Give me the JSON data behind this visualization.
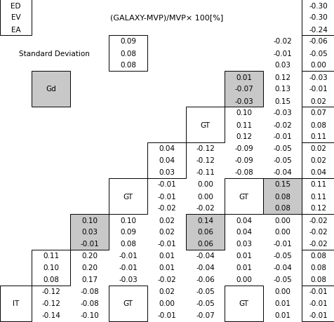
{
  "title": "(GALAXY-MVP)/MVP× 100[%]",
  "top_left_labels": [
    "ED",
    "EV",
    "EA"
  ],
  "top_right_values": [
    "-0.30",
    "-0.30",
    "-0.24"
  ],
  "std_dev_label": "Standard Deviation",
  "std_dev_values": [
    "0.09",
    "0.08",
    "0.08"
  ],
  "std_dev_right_col1": [
    "-0.02",
    "-0.01",
    "0.03"
  ],
  "std_dev_right_col2": [
    "-0.06",
    "-0.05",
    "0.00"
  ],
  "gd_label": "Gd",
  "gd_right_col1": [
    "0.01",
    "-0.07",
    "-0.03"
  ],
  "gd_right_col2": [
    "0.12",
    "0.13",
    "0.15"
  ],
  "gd_right_col3": [
    "-0.03",
    "-0.01",
    "0.02"
  ],
  "row_GT1_label": "GT",
  "row_GT1_col1": [
    "0.10",
    "0.11",
    "0.12"
  ],
  "row_GT1_col2": [
    "-0.03",
    "-0.02",
    "-0.01"
  ],
  "row_GT1_col3": [
    "0.07",
    "0.08",
    "0.11"
  ],
  "row4_col1": [
    "0.04",
    "0.04",
    "0.03"
  ],
  "row4_col2": [
    "-0.12",
    "-0.12",
    "-0.11"
  ],
  "row4_col3": [
    "-0.09",
    "-0.09",
    "-0.08"
  ],
  "row4_col4": [
    "-0.05",
    "-0.05",
    "-0.04"
  ],
  "row4_col5": [
    "0.02",
    "0.02",
    "0.04"
  ],
  "row_GT2_label": "GT",
  "row_GT2_col1": [
    "-0.01",
    "-0.01",
    "-0.02"
  ],
  "row_GT2_col2": [
    "0.00",
    "0.00",
    "-0.02"
  ],
  "row_GT2_GT_label": "GT",
  "row_GT2_col3": [
    "0.15",
    "0.08",
    "0.08"
  ],
  "row_GT2_col4": [
    "0.11",
    "0.11",
    "0.12"
  ],
  "row6_col1": [
    "0.10",
    "0.03",
    "-0.01"
  ],
  "row6_col2": [
    "0.10",
    "0.09",
    "0.08"
  ],
  "row6_col3": [
    "0.02",
    "0.02",
    "-0.01"
  ],
  "row6_col4": [
    "0.14",
    "0.06",
    "0.06"
  ],
  "row6_col5": [
    "0.04",
    "0.04",
    "0.03"
  ],
  "row6_col6": [
    "0.00",
    "0.00",
    "-0.01"
  ],
  "row6_col7": [
    "-0.02",
    "-0.02",
    "-0.02"
  ],
  "row7_col1": [
    "0.11",
    "0.10",
    "0.08"
  ],
  "row7_col2": [
    "0.20",
    "0.20",
    "0.17"
  ],
  "row7_col3": [
    "-0.01",
    "-0.01",
    "-0.03"
  ],
  "row7_col4": [
    "0.01",
    "0.01",
    "-0.02"
  ],
  "row7_col5": [
    "-0.04",
    "-0.04",
    "-0.06"
  ],
  "row7_col6": [
    "0.01",
    "0.01",
    "0.00"
  ],
  "row7_col7": [
    "-0.05",
    "-0.04",
    "-0.05"
  ],
  "row7_col8": [
    "0.08",
    "0.08",
    "0.08"
  ],
  "IT_label": "IT",
  "IT_col1": [
    "-0.12",
    "-0.12",
    "-0.14"
  ],
  "IT_col2": [
    "-0.08",
    "-0.08",
    "-0.10"
  ],
  "IT_GT_label": "GT",
  "IT_col3": [
    "0.02",
    "0.00",
    "-0.01"
  ],
  "IT_col4": [
    "-0.05",
    "-0.05",
    "-0.07"
  ],
  "IT_GT2_label": "GT",
  "IT_col5": [
    "0.00",
    "0.01",
    "0.01"
  ],
  "IT_col6": [
    "-0.01",
    "-0.01",
    "-0.01"
  ],
  "gray_color": "#c8c8c8",
  "white_color": "#ffffff",
  "black_color": "#000000",
  "fontsize": 7.5
}
